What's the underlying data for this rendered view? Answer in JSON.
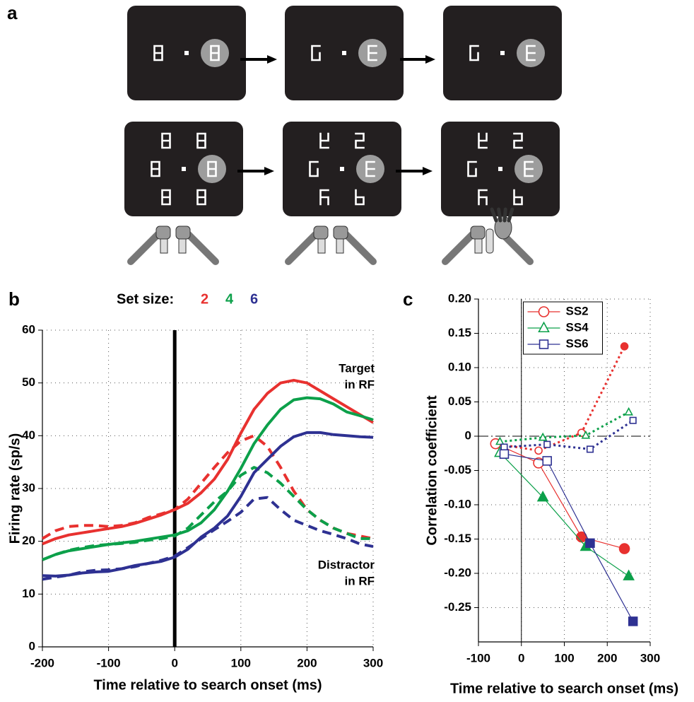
{
  "diagram": {
    "panel_label": "a"
  },
  "chart_data": [
    {
      "type": "line",
      "panel_label": "b",
      "title": "Set size:",
      "xlabel": "Time relative to search onset (ms)",
      "ylabel": "Firing rate (sp/s)",
      "x": [
        -200,
        -180,
        -160,
        -140,
        -120,
        -100,
        -80,
        -60,
        -40,
        -20,
        0,
        20,
        40,
        60,
        80,
        100,
        120,
        140,
        160,
        180,
        200,
        220,
        240,
        260,
        280,
        300
      ],
      "series": [
        {
          "name": "2",
          "color": "#e8312f",
          "values": [
            19.5,
            20.5,
            21.2,
            21.6,
            22,
            22.4,
            22.8,
            23.4,
            24.2,
            25,
            26,
            27.2,
            29.2,
            31.8,
            35.5,
            40.5,
            45,
            48,
            50,
            50.5,
            50,
            48.5,
            47,
            45.5,
            44,
            42.5
          ],
          "distractor_values": [
            20.5,
            22,
            22.8,
            23,
            23,
            22.8,
            23,
            23.5,
            24.5,
            25.2,
            26,
            28,
            31,
            34,
            36.8,
            39,
            40,
            38,
            34,
            29.5,
            26,
            24,
            22.5,
            21.5,
            21,
            20.5
          ]
        },
        {
          "name": "4",
          "color": "#0ca04a",
          "values": [
            16.5,
            17.5,
            18.2,
            18.6,
            19,
            19.4,
            19.7,
            20,
            20.4,
            20.8,
            21.2,
            22,
            23.5,
            26,
            29.5,
            33.8,
            38.5,
            42,
            45,
            46.8,
            47.2,
            47,
            46,
            44.5,
            43.8,
            43
          ],
          "distractor_values": [
            16.5,
            17.5,
            18.3,
            18.8,
            19.2,
            19.4,
            19.6,
            19.8,
            20.2,
            20.5,
            21,
            22.5,
            25,
            27.5,
            29.5,
            32.5,
            34,
            33,
            31,
            28.5,
            26,
            24,
            22.5,
            21.5,
            20.5,
            20.5
          ]
        },
        {
          "name": "6",
          "color": "#2e3192",
          "values": [
            13.5,
            13.4,
            13.6,
            14,
            14.2,
            14.3,
            14.8,
            15.4,
            15.8,
            16.2,
            17,
            18.5,
            20.8,
            22.5,
            24.8,
            28.5,
            33,
            35.5,
            38,
            39.8,
            40.6,
            40.6,
            40.2,
            40,
            39.8,
            39.7
          ],
          "distractor_values": [
            12.8,
            13.2,
            13.6,
            14.2,
            14.5,
            14.6,
            14.8,
            15.2,
            15.8,
            16.4,
            17.2,
            18.8,
            20.5,
            22.2,
            23.8,
            25.5,
            28,
            28.3,
            26,
            24,
            23,
            22,
            21.3,
            20.5,
            19.5,
            19
          ]
        }
      ],
      "annotations": [
        [
          "Target",
          "in RF"
        ],
        [
          "Distractor",
          "in RF"
        ]
      ],
      "xlim": [
        -200,
        300
      ],
      "ylim": [
        0,
        60
      ],
      "xticks": [
        -200,
        -100,
        0,
        100,
        200,
        300
      ],
      "yticks": [
        0,
        10,
        20,
        30,
        40,
        50,
        60
      ],
      "grid": true,
      "vline": 0
    },
    {
      "type": "line",
      "panel_label": "c",
      "markers": true,
      "xlabel": "Time relative to search onset (ms)",
      "ylabel": "Correlation coefficient",
      "series": [
        {
          "name": "SS2",
          "color": "#e8312f",
          "marker": "circle",
          "x": [
            -60,
            40,
            140,
            240
          ],
          "values": [
            -0.011,
            -0.039,
            -0.147,
            -0.164
          ],
          "filled": [
            false,
            false,
            true,
            true
          ],
          "dotted_values": [
            -0.011,
            -0.021,
            0.005,
            0.131
          ],
          "dotted_filled": [
            false,
            false,
            false,
            true
          ]
        },
        {
          "name": "SS4",
          "color": "#0ca04a",
          "marker": "triangle",
          "x": [
            -50,
            50,
            150,
            250
          ],
          "values": [
            -0.024,
            -0.089,
            -0.161,
            -0.204
          ],
          "filled": [
            false,
            true,
            true,
            true
          ],
          "dotted_values": [
            -0.008,
            -0.002,
            0.001,
            0.035
          ],
          "dotted_filled": [
            false,
            false,
            false,
            false
          ]
        },
        {
          "name": "SS6",
          "color": "#2e3192",
          "marker": "square",
          "x": [
            -40,
            60,
            160,
            260
          ],
          "values": [
            -0.026,
            -0.036,
            -0.156,
            -0.27
          ],
          "filled": [
            false,
            false,
            true,
            true
          ],
          "dotted_values": [
            -0.016,
            -0.012,
            -0.019,
            0.023
          ],
          "dotted_filled": [
            false,
            false,
            false,
            false
          ]
        }
      ],
      "xlim": [
        -100,
        300
      ],
      "ylim": [
        -0.3,
        0.2
      ],
      "xticks": [
        -100,
        0,
        100,
        200,
        300
      ],
      "yticks": [
        {
          "value": 0.2,
          "label": "0.20"
        },
        0.15,
        {
          "value": 0.1,
          "label": "0.10"
        },
        0.05,
        0,
        -0.05,
        {
          "value": -0.1,
          "label": "-0.10"
        },
        -0.15,
        {
          "value": -0.2,
          "label": "-0.20"
        },
        -0.25
      ],
      "grid": true,
      "vline": 0,
      "hline": 0,
      "legend": "upper center"
    }
  ]
}
